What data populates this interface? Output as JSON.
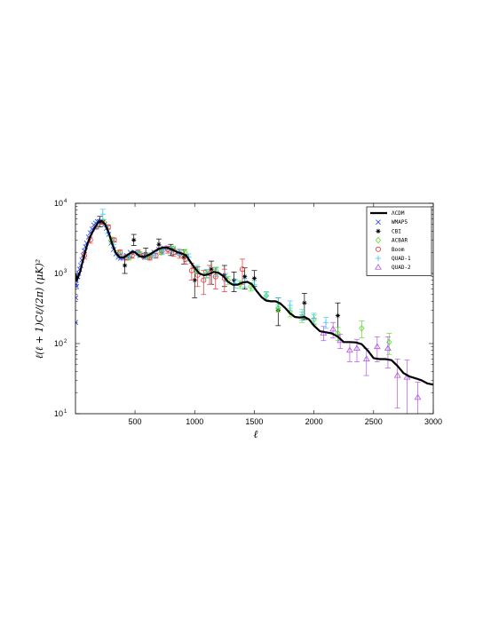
{
  "chart_data": {
    "type": "scatter",
    "title": "",
    "xlabel": "ℓ",
    "ylabel": "ℓ(ℓ + 1)Cℓ/(2π) (μK)²",
    "xlim": [
      1,
      3000
    ],
    "ylim": [
      10,
      10000
    ],
    "yscale": "log",
    "grid": false,
    "legend_position": "top-right",
    "x_ticks": [
      {
        "value": 500,
        "label": "500"
      },
      {
        "value": 1000,
        "label": "1000"
      },
      {
        "value": 1500,
        "label": "1500"
      },
      {
        "value": 2000,
        "label": "2000"
      },
      {
        "value": 2500,
        "label": "2500"
      },
      {
        "value": 3000,
        "label": "3000"
      }
    ],
    "y_ticks": [
      {
        "value": 10,
        "base": "10",
        "exp": "1"
      },
      {
        "value": 100,
        "base": "10",
        "exp": "2"
      },
      {
        "value": 1000,
        "base": "10",
        "exp": "3"
      },
      {
        "value": 10000,
        "base": "10",
        "exp": "4"
      }
    ],
    "series": [
      {
        "name": "ΛCDM",
        "kind": "line",
        "color": "#000000",
        "x": [
          2,
          10,
          20,
          40,
          60,
          80,
          100,
          130,
          160,
          190,
          220,
          250,
          280,
          310,
          340,
          370,
          400,
          420,
          450,
          480,
          500,
          540,
          580,
          620,
          660,
          700,
          740,
          780,
          820,
          860,
          900,
          930,
          960,
          1000,
          1040,
          1080,
          1120,
          1160,
          1200,
          1240,
          1280,
          1320,
          1360,
          1400,
          1440,
          1480,
          1520,
          1560,
          1600,
          1640,
          1680,
          1720,
          1760,
          1800,
          1840,
          1880,
          1920,
          1960,
          2000,
          2050,
          2100,
          2150,
          2200,
          2250,
          2300,
          2350,
          2400,
          2450,
          2500,
          2550,
          2600,
          2650,
          2700,
          2750,
          2800,
          2850,
          2900,
          2950,
          3000
        ],
        "y": [
          1000,
          780,
          870,
          1050,
          1450,
          1950,
          2600,
          3500,
          4400,
          5300,
          5600,
          5000,
          3800,
          2600,
          1950,
          1700,
          1680,
          1750,
          1900,
          2050,
          2000,
          1750,
          1720,
          1850,
          2050,
          2250,
          2350,
          2300,
          2150,
          2000,
          1900,
          1800,
          1500,
          1200,
          1000,
          940,
          980,
          1050,
          1020,
          920,
          760,
          690,
          690,
          740,
          760,
          700,
          560,
          460,
          410,
          400,
          400,
          370,
          320,
          270,
          240,
          235,
          240,
          220,
          180,
          150,
          145,
          140,
          125,
          105,
          105,
          104,
          98,
          80,
          62,
          60,
          60,
          58,
          48,
          38,
          34,
          32,
          30,
          27,
          26
        ]
      },
      {
        "name": "WMAP5",
        "kind": "cross",
        "color": "#1f3fff",
        "x": [
          2,
          3,
          4,
          5,
          7,
          10,
          14,
          20,
          28,
          36,
          45,
          55,
          65,
          75,
          85,
          95,
          110,
          125,
          140,
          155,
          170,
          185,
          200,
          215,
          230,
          245,
          260,
          280,
          300,
          320,
          340,
          360,
          380,
          400,
          430,
          460,
          500,
          540,
          580,
          620,
          660,
          700,
          740,
          780,
          820,
          860
        ],
        "y": [
          200,
          700,
          450,
          850,
          800,
          650,
          900,
          900,
          1000,
          1150,
          1300,
          1550,
          1800,
          2100,
          2400,
          2700,
          3300,
          3800,
          4300,
          4900,
          5200,
          5500,
          5500,
          5600,
          5400,
          5000,
          4400,
          3600,
          2700,
          2200,
          1900,
          1700,
          1650,
          1650,
          1800,
          2000,
          2000,
          1800,
          1700,
          1800,
          2000,
          2200,
          2300,
          2300,
          2200,
          2000
        ],
        "err": [
          0,
          0,
          0,
          0,
          0,
          0,
          0,
          0,
          0,
          0,
          0,
          0,
          0,
          0,
          0,
          0,
          0,
          0,
          0,
          0,
          0,
          0,
          0,
          0,
          0,
          0,
          0,
          0,
          0,
          0,
          0,
          0,
          0,
          0,
          0,
          0,
          0,
          0,
          0,
          0,
          0,
          0,
          0,
          0,
          0,
          0
        ]
      },
      {
        "name": "CBI",
        "kind": "star",
        "color": "#000000",
        "x": [
          205,
          415,
          490,
          590,
          700,
          800,
          910,
          1000,
          1140,
          1250,
          1330,
          1420,
          1500,
          1700,
          1920,
          2200
        ],
        "y": [
          5500,
          1300,
          3000,
          1900,
          2600,
          2200,
          1700,
          800,
          1150,
          950,
          800,
          900,
          850,
          300,
          380,
          250
        ],
        "err_lo": [
          4600,
          1000,
          2500,
          1600,
          2200,
          1800,
          1350,
          450,
          700,
          650,
          550,
          600,
          650,
          180,
          220,
          130
        ],
        "err_hi": [
          6500,
          1700,
          3600,
          2300,
          3100,
          2600,
          2150,
          1200,
          1500,
          1300,
          1050,
          1200,
          1100,
          450,
          520,
          380
        ]
      },
      {
        "name": "ACBAR",
        "kind": "diamond",
        "color": "#5fe02a",
        "x": [
          240,
          300,
          360,
          450,
          540,
          620,
          720,
          820,
          920,
          1020,
          1100,
          1180,
          1280,
          1380,
          1470,
          1600,
          1700,
          1800,
          1900,
          2000,
          2200,
          2400,
          2630
        ],
        "y": [
          5400,
          3000,
          1900,
          1700,
          1900,
          1800,
          2000,
          2250,
          2000,
          1100,
          1000,
          1100,
          800,
          700,
          650,
          480,
          320,
          280,
          240,
          220,
          140,
          165,
          105
        ],
        "err_lo": [
          5000,
          2700,
          1700,
          1550,
          1750,
          1650,
          1850,
          2050,
          1800,
          980,
          880,
          970,
          700,
          610,
          560,
          420,
          280,
          240,
          200,
          185,
          110,
          120,
          70
        ],
        "err_hi": [
          5800,
          3300,
          2100,
          1850,
          2050,
          1950,
          2150,
          2450,
          2200,
          1220,
          1120,
          1230,
          900,
          790,
          740,
          540,
          360,
          320,
          280,
          255,
          170,
          210,
          140
        ]
      },
      {
        "name": "Boom",
        "kind": "circle",
        "color": "#e63232",
        "x": [
          75,
          125,
          175,
          225,
          275,
          325,
          375,
          425,
          475,
          525,
          575,
          625,
          675,
          725,
          775,
          825,
          875,
          925,
          975,
          1025,
          1075,
          1125,
          1175,
          1250,
          1400
        ],
        "y": [
          1800,
          3000,
          4600,
          5400,
          4600,
          3000,
          2000,
          1700,
          1800,
          2000,
          1800,
          1700,
          1800,
          2100,
          2200,
          2000,
          1900,
          1600,
          1100,
          950,
          800,
          1000,
          900,
          850,
          1150
        ],
        "err_lo": [
          1600,
          2700,
          4300,
          5100,
          4300,
          2800,
          1850,
          1550,
          1650,
          1850,
          1650,
          1550,
          1650,
          1900,
          1950,
          1750,
          1650,
          1350,
          800,
          650,
          500,
          700,
          600,
          550,
          700
        ],
        "err_hi": [
          2000,
          3300,
          4900,
          5700,
          4900,
          3200,
          2150,
          1850,
          1950,
          2150,
          1950,
          1850,
          1950,
          2300,
          2450,
          2250,
          2150,
          1850,
          1400,
          1250,
          1100,
          1300,
          1200,
          1150,
          1600
        ]
      },
      {
        "name": "QUAD-1",
        "kind": "plus",
        "color": "#33c8f0",
        "x": [
          180,
          230,
          270,
          320,
          380,
          450,
          520,
          590,
          660,
          730,
          800,
          870,
          950,
          1020,
          1100,
          1180,
          1260,
          1340,
          1420,
          1500,
          1600,
          1700,
          1800,
          1900,
          2000,
          2100
        ],
        "y": [
          4900,
          7000,
          4200,
          2600,
          1800,
          1750,
          1950,
          1750,
          1800,
          2050,
          2200,
          2050,
          1700,
          1150,
          1000,
          1050,
          880,
          720,
          740,
          690,
          480,
          390,
          350,
          260,
          230,
          200
        ],
        "err_lo": [
          4400,
          5800,
          3700,
          2300,
          1650,
          1600,
          1800,
          1600,
          1650,
          1900,
          2000,
          1850,
          1500,
          1000,
          860,
          900,
          760,
          620,
          640,
          590,
          410,
          330,
          295,
          215,
          190,
          165
        ],
        "err_hi": [
          5400,
          8200,
          4700,
          2900,
          1950,
          1900,
          2100,
          1900,
          1950,
          2200,
          2400,
          2250,
          1900,
          1300,
          1140,
          1200,
          1000,
          820,
          840,
          790,
          550,
          450,
          405,
          305,
          270,
          235
        ]
      },
      {
        "name": "QUAD-2",
        "kind": "triangle",
        "color": "#b255e6",
        "x": [
          2080,
          2160,
          2220,
          2300,
          2360,
          2440,
          2530,
          2620,
          2700,
          2780,
          2870
        ],
        "y": [
          140,
          160,
          110,
          80,
          85,
          60,
          90,
          85,
          35,
          33,
          17
        ],
        "err_lo": [
          110,
          120,
          85,
          55,
          55,
          35,
          55,
          45,
          12,
          10,
          10
        ],
        "err_hi": [
          175,
          200,
          135,
          105,
          115,
          85,
          125,
          125,
          60,
          58,
          28
        ]
      }
    ]
  }
}
